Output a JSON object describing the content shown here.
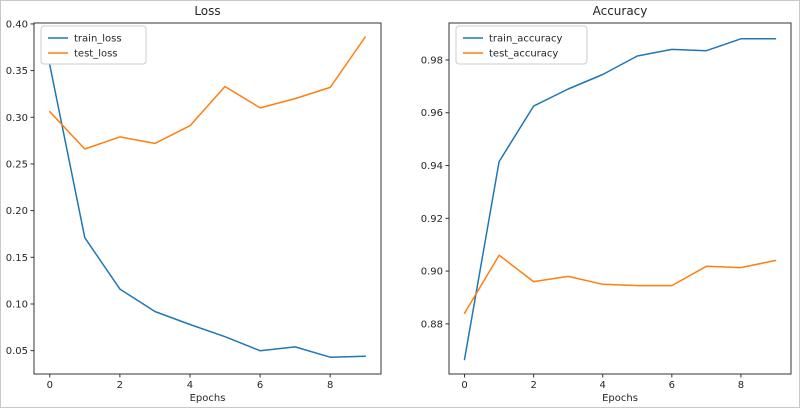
{
  "figure": {
    "background": "#ffffff",
    "frame_color": "#c8c8c8",
    "text_color": "#262626",
    "spine_color": "#333333",
    "legend_edge_color": "#cccccc",
    "legend_fill": "#ffffff"
  },
  "chart_data": [
    {
      "type": "line",
      "title": "Loss",
      "xlabel": "Epochs",
      "ylabel": "",
      "x": [
        0,
        1,
        2,
        3,
        4,
        5,
        6,
        7,
        8,
        9
      ],
      "series": [
        {
          "name": "train_loss",
          "color": "#1f77b4",
          "values": [
            0.356,
            0.171,
            0.116,
            0.092,
            0.078,
            0.065,
            0.05,
            0.054,
            0.043,
            0.044
          ]
        },
        {
          "name": "test_loss",
          "color": "#ff7f0e",
          "values": [
            0.306,
            0.266,
            0.279,
            0.272,
            0.291,
            0.333,
            0.31,
            0.32,
            0.332,
            0.386
          ]
        }
      ],
      "xlim": [
        -0.45,
        9.45
      ],
      "ylim": [
        0.025,
        0.401
      ],
      "xticks": [
        0,
        2,
        4,
        6,
        8
      ],
      "xtick_labels": [
        "0",
        "2",
        "4",
        "6",
        "8"
      ],
      "yticks": [
        0.05,
        0.1,
        0.15,
        0.2,
        0.25,
        0.3,
        0.35,
        0.4
      ],
      "ytick_labels": [
        "0.05",
        "0.10",
        "0.15",
        "0.20",
        "0.25",
        "0.30",
        "0.35",
        "0.40"
      ],
      "legend_position": "upper left",
      "grid": false
    },
    {
      "type": "line",
      "title": "Accuracy",
      "xlabel": "Epochs",
      "ylabel": "",
      "x": [
        0,
        1,
        2,
        3,
        4,
        5,
        6,
        7,
        8,
        9
      ],
      "series": [
        {
          "name": "train_accuracy",
          "color": "#1f77b4",
          "values": [
            0.8665,
            0.9415,
            0.9625,
            0.969,
            0.9745,
            0.9815,
            0.984,
            0.9835,
            0.988,
            0.988
          ]
        },
        {
          "name": "test_accuracy",
          "color": "#ff7f0e",
          "values": [
            0.884,
            0.906,
            0.896,
            0.898,
            0.895,
            0.8945,
            0.8945,
            0.9018,
            0.9013,
            0.904
          ]
        }
      ],
      "xlim": [
        -0.45,
        9.45
      ],
      "ylim": [
        0.861,
        0.994
      ],
      "xticks": [
        0,
        2,
        4,
        6,
        8
      ],
      "xtick_labels": [
        "0",
        "2",
        "4",
        "6",
        "8"
      ],
      "yticks": [
        0.88,
        0.9,
        0.92,
        0.94,
        0.96,
        0.98
      ],
      "ytick_labels": [
        "0.88",
        "0.90",
        "0.92",
        "0.94",
        "0.96",
        "0.98"
      ],
      "legend_position": "upper left",
      "grid": false
    }
  ]
}
